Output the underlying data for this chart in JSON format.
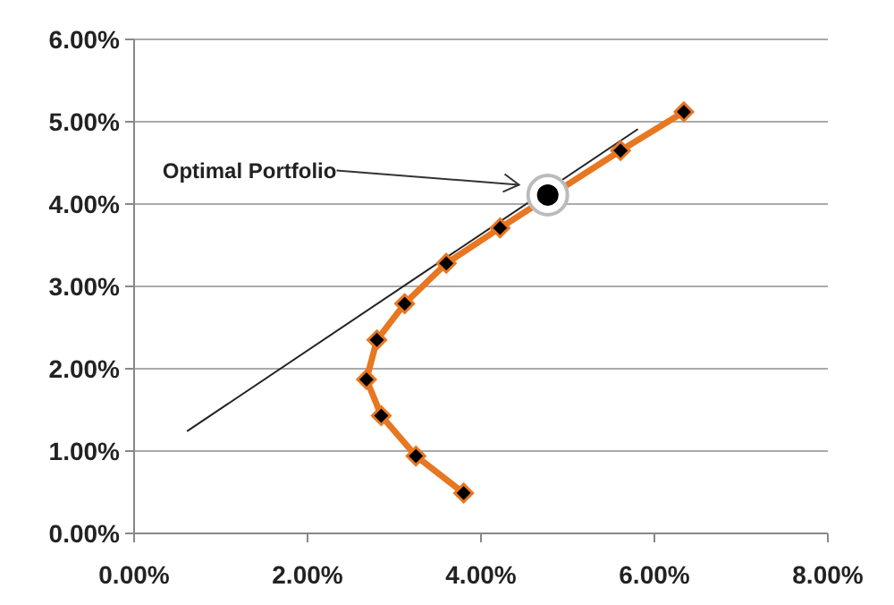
{
  "chart_data": {
    "type": "line",
    "xlim": [
      0,
      8
    ],
    "ylim": [
      0,
      6
    ],
    "xticks": [
      {
        "value": 0,
        "label": "0.00%"
      },
      {
        "value": 2,
        "label": "2.00%"
      },
      {
        "value": 4,
        "label": "4.00%"
      },
      {
        "value": 6,
        "label": "6.00%"
      },
      {
        "value": 8,
        "label": "8.00%"
      }
    ],
    "yticks": [
      {
        "value": 0,
        "label": "0.00%"
      },
      {
        "value": 1,
        "label": "1.00%"
      },
      {
        "value": 2,
        "label": "2.00%"
      },
      {
        "value": 3,
        "label": "3.00%"
      },
      {
        "value": 4,
        "label": "4.00%"
      },
      {
        "value": 5,
        "label": "5.00%"
      },
      {
        "value": 6,
        "label": "6.00%"
      }
    ],
    "grid": "y",
    "series": [
      {
        "color": "#222222",
        "marker": "none",
        "x": [
          0.61,
          5.81
        ],
        "values": [
          1.24,
          4.91
        ]
      },
      {
        "color": "#e87722",
        "marker": "diamond",
        "x": [
          3.8,
          3.25,
          2.85,
          2.68,
          2.8,
          3.12,
          3.6,
          4.22,
          5.61,
          6.34
        ],
        "values": [
          0.49,
          0.94,
          1.43,
          1.87,
          2.35,
          2.79,
          3.28,
          3.71,
          4.65,
          5.12
        ]
      },
      {
        "type": "scatter",
        "color": "#000000",
        "marker": "circle",
        "x": [
          4.77
        ],
        "values": [
          4.11
        ]
      }
    ],
    "annotations": [
      "Optimal Portfolio"
    ]
  }
}
